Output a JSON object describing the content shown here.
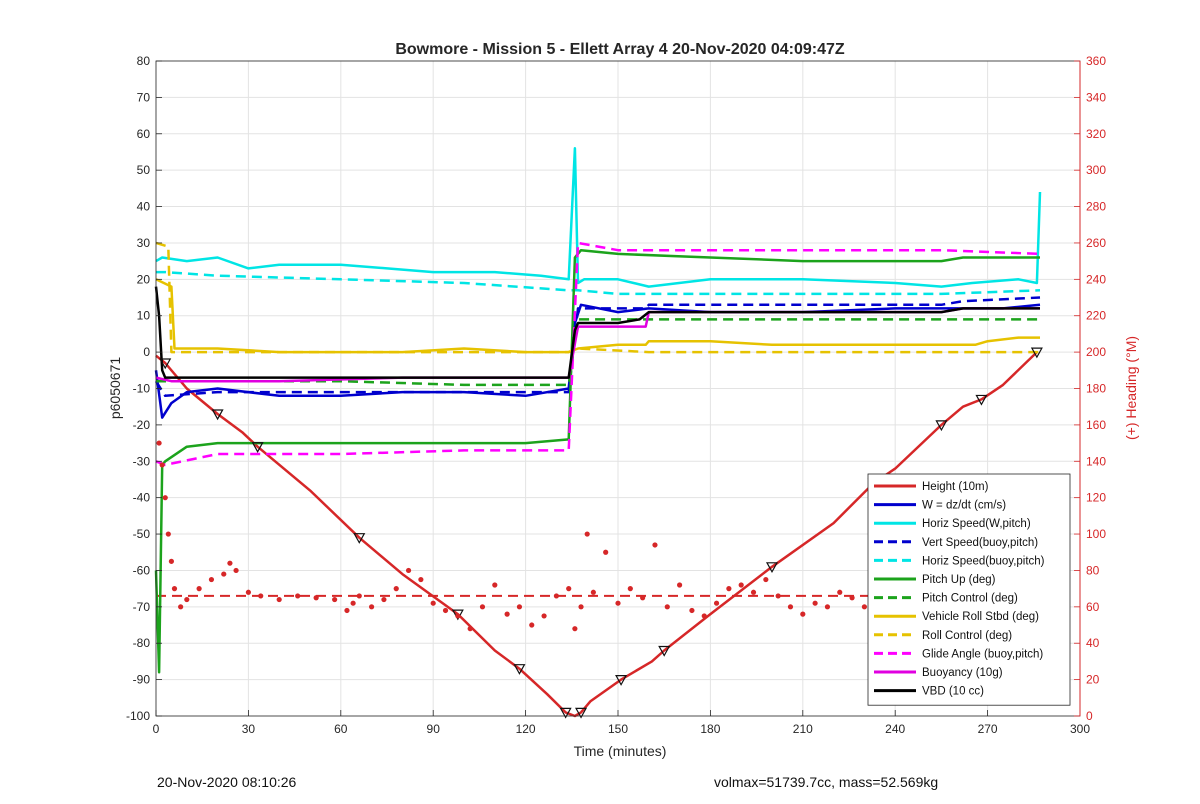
{
  "chart_data": {
    "type": "line",
    "title": "Bowmore - Mission 5 - Ellett Array 4 20-Nov-2020 04:09:47Z",
    "xlabel": "Time (minutes)",
    "ylabel": "p6050671",
    "y2label": "(+) Heading (°M)",
    "xlim": [
      0,
      300
    ],
    "ylim": [
      -100,
      80
    ],
    "y2lim": [
      0,
      360
    ],
    "xticks": [
      0,
      30,
      60,
      90,
      120,
      150,
      180,
      210,
      240,
      270,
      300
    ],
    "yticks": [
      80,
      70,
      60,
      50,
      40,
      30,
      20,
      10,
      0,
      -10,
      -20,
      -30,
      -40,
      -50,
      -60,
      -70,
      -80,
      -90,
      -100
    ],
    "y2ticks": [
      360,
      340,
      320,
      300,
      280,
      260,
      240,
      220,
      200,
      180,
      160,
      140,
      120,
      100,
      80,
      60,
      40,
      20,
      0
    ],
    "grid": true,
    "legend_position": "bottom-right",
    "series": [
      {
        "name": "Height (10m)",
        "color": "#d62728",
        "style": "solid",
        "axis": "left",
        "x": [
          0,
          3,
          10,
          20,
          28,
          33,
          50,
          66,
          80,
          98,
          110,
          118,
          127,
          133,
          136,
          138,
          141,
          151,
          161,
          165,
          180,
          200,
          220,
          233,
          240,
          255,
          262,
          268,
          275,
          286
        ],
        "y": [
          -1,
          -3,
          -10,
          -17,
          -22,
          -26,
          -38,
          -51,
          -61,
          -72,
          -82,
          -87,
          -94,
          -99,
          -100,
          -99,
          -96,
          -90,
          -85,
          -82,
          -72,
          -59,
          -47,
          -36,
          -32,
          -20,
          -15,
          -13,
          -9,
          0
        ]
      },
      {
        "name": "W = dz/dt (cm/s)",
        "color": "#0000cd",
        "style": "solid",
        "axis": "left",
        "x": [
          0,
          2,
          5,
          10,
          20,
          40,
          60,
          80,
          100,
          120,
          134,
          136,
          138,
          150,
          160,
          180,
          210,
          240,
          260,
          275,
          287
        ],
        "y": [
          -5,
          -18,
          -14,
          -11,
          -10,
          -12,
          -12,
          -11,
          -11,
          -12,
          -10,
          8,
          13,
          11,
          12,
          11,
          11,
          12,
          12,
          12,
          13
        ]
      },
      {
        "name": "Horiz Speed(W,pitch)",
        "color": "#00e5e5",
        "style": "solid",
        "axis": "left",
        "x": [
          0,
          2,
          10,
          20,
          30,
          40,
          60,
          75,
          90,
          110,
          125,
          134,
          136,
          137,
          139,
          150,
          160,
          180,
          210,
          240,
          255,
          265,
          280,
          286,
          287
        ],
        "y": [
          25,
          26,
          25,
          26,
          23,
          24,
          24,
          23,
          22,
          22,
          21,
          20,
          56,
          19,
          20,
          20,
          18,
          20,
          20,
          19,
          18,
          19,
          20,
          19,
          44
        ]
      },
      {
        "name": "Vert Speed(buoy,pitch)",
        "color": "#0000cd",
        "style": "dashed",
        "axis": "left",
        "x": [
          0,
          3,
          20,
          60,
          100,
          134,
          137,
          150,
          159,
          160,
          200,
          255,
          262,
          287
        ],
        "y": [
          -8,
          -12,
          -11,
          -11,
          -11,
          -11,
          12,
          12,
          12,
          13,
          13,
          13,
          14,
          15
        ]
      },
      {
        "name": "Horiz Speed(buoy,pitch)",
        "color": "#00e5e5",
        "style": "dashed",
        "axis": "left",
        "x": [
          0,
          3,
          20,
          60,
          100,
          134,
          137,
          150,
          200,
          255,
          287
        ],
        "y": [
          22,
          22,
          21,
          20,
          19,
          17,
          17,
          16,
          16,
          16,
          17
        ]
      },
      {
        "name": "Pitch Up (deg)",
        "color": "#1ca31c",
        "style": "solid",
        "axis": "left",
        "x": [
          0,
          1,
          2,
          3,
          10,
          20,
          40,
          60,
          80,
          100,
          120,
          134,
          136,
          138,
          150,
          180,
          210,
          240,
          255,
          262,
          275,
          287
        ],
        "y": [
          -60,
          -88,
          -31,
          -30,
          -26,
          -25,
          -25,
          -25,
          -25,
          -25,
          -25,
          -24,
          26,
          28,
          27,
          26,
          25,
          25,
          25,
          26,
          26,
          26
        ]
      },
      {
        "name": "Pitch Control (deg)",
        "color": "#1ca31c",
        "style": "dashed",
        "axis": "left",
        "x": [
          0,
          3,
          20,
          60,
          100,
          134,
          137,
          150,
          159,
          160,
          200,
          255,
          262,
          287
        ],
        "y": [
          -8,
          -8,
          -8,
          -8,
          -9,
          -9,
          9,
          9,
          9,
          9,
          9,
          9,
          9,
          9
        ]
      },
      {
        "name": "Vehicle Roll Stbd (deg)",
        "color": "#e6c200",
        "style": "solid",
        "axis": "left",
        "x": [
          0,
          5,
          6,
          20,
          40,
          60,
          80,
          100,
          120,
          134,
          137,
          150,
          159,
          160,
          180,
          200,
          240,
          260,
          266,
          270,
          280,
          287
        ],
        "y": [
          20,
          18,
          1,
          1,
          0,
          0,
          0,
          1,
          0,
          0,
          1,
          2,
          2,
          3,
          3,
          2,
          2,
          2,
          2,
          3,
          4,
          4
        ]
      },
      {
        "name": "Roll Control (deg)",
        "color": "#e6c200",
        "style": "dashed",
        "axis": "left",
        "x": [
          0,
          4,
          5,
          40,
          80,
          120,
          134,
          137,
          160,
          200,
          240,
          270,
          287
        ],
        "y": [
          30,
          29,
          0,
          0,
          0,
          0,
          0,
          1,
          0,
          0,
          0,
          0,
          0
        ]
      },
      {
        "name": "Glide Angle (buoy,pitch)",
        "color": "#ff00ff",
        "style": "dashed",
        "axis": "left",
        "x": [
          0,
          3,
          20,
          60,
          100,
          134,
          137,
          150,
          200,
          255,
          287
        ],
        "y": [
          -30,
          -31,
          -28,
          -28,
          -27,
          -27,
          30,
          28,
          28,
          28,
          27
        ]
      },
      {
        "name": "Buoyancy (10g)",
        "color": "#e000e0",
        "style": "solid",
        "axis": "left",
        "x": [
          0,
          5,
          40,
          80,
          100,
          134,
          137,
          150,
          159,
          160,
          200,
          255,
          262,
          287
        ],
        "y": [
          -7,
          -8,
          -8,
          -7,
          -7,
          -7,
          7,
          7,
          7,
          11,
          11,
          11,
          12,
          12
        ]
      },
      {
        "name": "VBD (10 cc)",
        "color": "#000000",
        "style": "solid",
        "axis": "left",
        "x": [
          0,
          1,
          2,
          3,
          10,
          40,
          80,
          100,
          134,
          136,
          137,
          150,
          157,
          160,
          200,
          255,
          262,
          287
        ],
        "y": [
          18,
          10,
          -5,
          -7,
          -7,
          -7,
          -7,
          -7,
          -7,
          6,
          8,
          8,
          9,
          11,
          11,
          11,
          12,
          12
        ]
      }
    ],
    "heading_scatter": {
      "axis": "right",
      "color": "#d62728",
      "mean_line": 66,
      "x": [
        1,
        2,
        3,
        4,
        5,
        6,
        8,
        10,
        14,
        18,
        22,
        24,
        26,
        30,
        34,
        40,
        46,
        52,
        58,
        62,
        64,
        66,
        70,
        74,
        78,
        82,
        86,
        90,
        94,
        98,
        102,
        106,
        110,
        114,
        118,
        122,
        126,
        130,
        134,
        136,
        138,
        140,
        142,
        146,
        150,
        154,
        158,
        162,
        166,
        170,
        174,
        178,
        182,
        186,
        190,
        194,
        198,
        202,
        206,
        210,
        214,
        218,
        222,
        226,
        230,
        234,
        238,
        242,
        246,
        250,
        254,
        258,
        262,
        266,
        270,
        274,
        278,
        282,
        286
      ],
      "y": [
        150,
        138,
        120,
        100,
        85,
        70,
        60,
        64,
        70,
        75,
        78,
        84,
        80,
        68,
        66,
        64,
        66,
        65,
        64,
        58,
        62,
        66,
        60,
        64,
        70,
        80,
        75,
        62,
        58,
        55,
        48,
        60,
        72,
        56,
        60,
        50,
        55,
        66,
        70,
        48,
        60,
        100,
        68,
        90,
        62,
        70,
        65,
        94,
        60,
        72,
        58,
        55,
        62,
        70,
        72,
        68,
        75,
        66,
        60,
        56,
        62,
        60,
        68,
        65,
        60,
        64,
        66,
        58,
        60,
        62,
        66,
        60,
        70,
        72,
        60,
        66,
        62,
        55,
        60
      ]
    }
  },
  "footer": {
    "timestamp": "20-Nov-2020 08:10:26",
    "stats": "volmax=51739.7cc, mass=52.569kg"
  }
}
